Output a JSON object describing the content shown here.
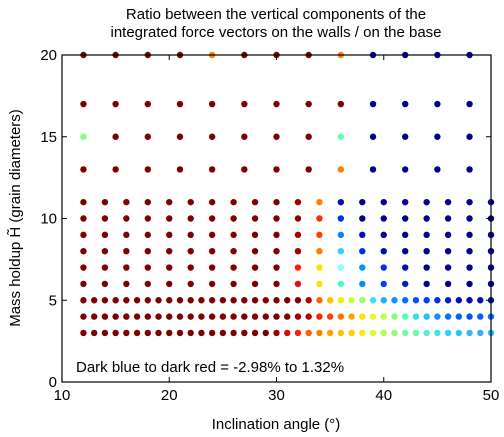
{
  "chart_data": {
    "type": "scatter",
    "title_lines": [
      "Ratio between the vertical components of the",
      "integrated force vectors on the walls / on the base"
    ],
    "xlabel": "Inclination angle (°)",
    "ylabel": "Mass holdup H̃ (grain diameters)",
    "xlim": [
      10,
      50
    ],
    "ylim": [
      0,
      20
    ],
    "xticks": [
      10,
      20,
      30,
      40,
      50
    ],
    "yticks": [
      0,
      5,
      10,
      15,
      20
    ],
    "grid": false,
    "annotation": "Dark blue to dark red = -2.98% to 1.32%",
    "colorscale": "jet (dark blue = -2.98%, dark red = 1.32%)",
    "x_dense": [
      12,
      13,
      14,
      15,
      16,
      17,
      18,
      19,
      20,
      21,
      22,
      23,
      24,
      25,
      26,
      27,
      28,
      29,
      30,
      31,
      32,
      33,
      34,
      35,
      36,
      37,
      38,
      39,
      40,
      41,
      42,
      43,
      44,
      45,
      46,
      47,
      48,
      49,
      50
    ],
    "x_medium": [
      12,
      14,
      16,
      18,
      20,
      22,
      24,
      26,
      28,
      30,
      32,
      34,
      36,
      38,
      40,
      42,
      44,
      46,
      48,
      50
    ],
    "x_sparse": [
      12,
      15,
      18,
      21,
      24,
      27,
      30,
      33,
      36,
      39,
      42,
      45,
      48
    ],
    "rows": [
      {
        "y": 3,
        "x_set": "dense",
        "colors": [
          "#800000",
          "#800000",
          "#800000",
          "#800000",
          "#800000",
          "#800000",
          "#800000",
          "#800000",
          "#800000",
          "#800000",
          "#800000",
          "#800000",
          "#800000",
          "#800000",
          "#800000",
          "#800000",
          "#800000",
          "#800000",
          "#a00000",
          "#d01010",
          "#ff2000",
          "#ff6000",
          "#ff8000",
          "#ffa000",
          "#ffc000",
          "#ffd000",
          "#f0f000",
          "#d0ff30",
          "#b0ff50",
          "#90ff70",
          "#70ffa0",
          "#60ffb0",
          "#50f0d0",
          "#40e0f0",
          "#30d0ff",
          "#30c0ff",
          "#40b0ff",
          "#30b0ff",
          "#20c0ff"
        ]
      },
      {
        "y": 4,
        "x_set": "dense",
        "colors": [
          "#800000",
          "#800000",
          "#800000",
          "#800000",
          "#800000",
          "#800000",
          "#800000",
          "#800000",
          "#800000",
          "#800000",
          "#800000",
          "#800000",
          "#800000",
          "#800000",
          "#800000",
          "#800000",
          "#800000",
          "#800000",
          "#800000",
          "#800000",
          "#a00000",
          "#c00000",
          "#ff2000",
          "#ff4000",
          "#ff7000",
          "#ffa000",
          "#ffe000",
          "#e0ff20",
          "#c0ff40",
          "#80ff80",
          "#50ffb0",
          "#30e0f0",
          "#20c0ff",
          "#1090ff",
          "#0070ff",
          "#0060ff",
          "#0050ff",
          "#0060ff",
          "#0070ff"
        ]
      },
      {
        "y": 5,
        "x_set": "dense",
        "colors": [
          "#800000",
          "#800000",
          "#800000",
          "#800000",
          "#800000",
          "#800000",
          "#800000",
          "#800000",
          "#800000",
          "#800000",
          "#800000",
          "#800000",
          "#800000",
          "#800000",
          "#800000",
          "#800000",
          "#800000",
          "#800000",
          "#800000",
          "#800000",
          "#800000",
          "#b00000",
          "#ff6000",
          "#ffc000",
          "#f0f000",
          "#d0ff30",
          "#90ff70",
          "#40e0ff",
          "#20b0ff",
          "#1090ff",
          "#0070ff",
          "#0050ff",
          "#0040ff",
          "#0030ee",
          "#0020cc",
          "#0010b0",
          "#0010b0",
          "#0010b0",
          "#0010a0"
        ]
      },
      {
        "y": 6,
        "x_set": "medium",
        "colors": [
          "#800000",
          "#800000",
          "#800000",
          "#800000",
          "#800000",
          "#800000",
          "#800000",
          "#800000",
          "#800000",
          "#800000",
          "#e01010",
          "#ffe000",
          "#40ffc0",
          "#0090ff",
          "#0040ff",
          "#0020cc",
          "#000090",
          "#000090",
          "#000090",
          "#000090"
        ]
      },
      {
        "y": 7,
        "x_set": "medium",
        "colors": [
          "#800000",
          "#800000",
          "#800000",
          "#800000",
          "#800000",
          "#800000",
          "#800000",
          "#800000",
          "#800000",
          "#800000",
          "#ff2000",
          "#ffe000",
          "#80ffff",
          "#0090ff",
          "#0030ee",
          "#0010aa",
          "#000090",
          "#000090",
          "#000090",
          "#000090"
        ]
      },
      {
        "y": 8,
        "x_set": "medium",
        "colors": [
          "#800000",
          "#800000",
          "#800000",
          "#800000",
          "#800000",
          "#800000",
          "#800000",
          "#800000",
          "#800000",
          "#800000",
          "#a00000",
          "#ff8000",
          "#30d0ff",
          "#0030ee",
          "#0010aa",
          "#000090",
          "#000090",
          "#000090",
          "#000090",
          "#000090"
        ]
      },
      {
        "y": 9,
        "x_set": "medium",
        "colors": [
          "#800000",
          "#800000",
          "#800000",
          "#800000",
          "#800000",
          "#800000",
          "#800000",
          "#800000",
          "#800000",
          "#800000",
          "#a00000",
          "#ff4000",
          "#1080ff",
          "#0010aa",
          "#000090",
          "#000090",
          "#000090",
          "#000090",
          "#000090",
          "#000090"
        ]
      },
      {
        "y": 10,
        "x_set": "medium",
        "colors": [
          "#800000",
          "#800000",
          "#800000",
          "#800000",
          "#800000",
          "#800000",
          "#800000",
          "#800000",
          "#800000",
          "#800000",
          "#900000",
          "#ff3000",
          "#0030ee",
          "#000090",
          "#000090",
          "#000090",
          "#000090",
          "#000090",
          "#000090",
          "#000090"
        ]
      },
      {
        "y": 11,
        "x_set": "medium",
        "colors": [
          "#800000",
          "#800000",
          "#800000",
          "#800000",
          "#800000",
          "#800000",
          "#800000",
          "#800000",
          "#800000",
          "#800000",
          "#a00000",
          "#ff8000",
          "#0010aa",
          "#000090",
          "#000090",
          "#000090",
          "#000090",
          "#000090",
          "#000090",
          "#000090"
        ]
      },
      {
        "y": 13,
        "x_set": "sparse",
        "colors": [
          "#800000",
          "#800000",
          "#800000",
          "#800000",
          "#800000",
          "#800000",
          "#800000",
          "#800000",
          "#ff8000",
          "#000090",
          "#000090",
          "#000090",
          "#000090"
        ]
      },
      {
        "y": 15,
        "x_set": "sparse",
        "colors": [
          "#80ff80",
          "#800000",
          "#800000",
          "#800000",
          "#800000",
          "#800000",
          "#800000",
          "#800000",
          "#60ffb0",
          "#000090",
          "#000090",
          "#000090",
          "#000090"
        ]
      },
      {
        "y": 17,
        "x_set": "sparse",
        "colors": [
          "#800000",
          "#800000",
          "#800000",
          "#800000",
          "#800000",
          "#800000",
          "#800000",
          "#800000",
          "#800000",
          "#000090",
          "#000090",
          "#000090",
          "#000090"
        ]
      },
      {
        "y": 20,
        "x_set": "sparse",
        "colors": [
          "#800000",
          "#800000",
          "#800000",
          "#800000",
          "#ff8000",
          "#800000",
          "#800000",
          "#800000",
          "#ff8000",
          "#000090",
          "#000090",
          "#000090",
          "#000090"
        ]
      }
    ]
  }
}
